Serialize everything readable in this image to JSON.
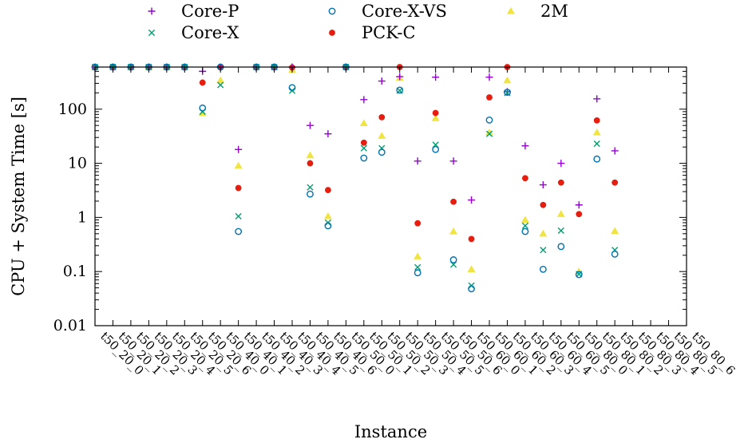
{
  "chart_data": {
    "type": "scatter",
    "xlabel": "Instance",
    "ylabel": "CPU + System Time [s]",
    "yscale": "log",
    "ylim": [
      0.01,
      600
    ],
    "yticks": [
      {
        "value": 0.01,
        "label": "0.01"
      },
      {
        "value": 0.1,
        "label": "0.1"
      },
      {
        "value": 1,
        "label": "1"
      },
      {
        "value": 10,
        "label": "10"
      },
      {
        "value": 100,
        "label": "100"
      }
    ],
    "grid": false,
    "legend_position": "top",
    "categories": [
      "t50_20_0",
      "t50_20_1",
      "t50_20_2",
      "t50_20_3",
      "t50_20_4",
      "t50_20_5",
      "t50_20_6",
      "t50_40_0",
      "t50_40_1",
      "t50_40_2",
      "t50_40_3",
      "t50_40_4",
      "t50_40_5",
      "t50_40_6",
      "t50_50_0",
      "t50_50_1",
      "t50_50_2",
      "t50_50_3",
      "t50_50_4",
      "t50_50_5",
      "t50_50_6",
      "t50_60_0",
      "t50_60_1",
      "t50_60_2",
      "t50_60_3",
      "t50_60_4",
      "t50_60_5",
      "t50_80_0",
      "t50_80_1",
      "t50_80_2",
      "t50_80_3",
      "t50_80_4",
      "t50_80_5",
      "t50_80_6"
    ],
    "series": [
      {
        "name": "Core-P",
        "marker": "plus",
        "color": "#9400d3",
        "values": [
          600,
          600,
          600,
          600,
          600,
          600,
          500,
          600,
          18,
          600,
          600,
          600,
          50,
          35,
          600,
          150,
          330,
          400,
          11,
          390,
          11,
          2.1,
          390,
          210,
          21,
          4,
          10,
          1.7,
          155,
          17,
          null,
          null,
          null,
          null
        ]
      },
      {
        "name": "Core-X",
        "marker": "cross",
        "color": "#009e73",
        "values": [
          600,
          600,
          600,
          600,
          600,
          600,
          90,
          280,
          1.05,
          600,
          600,
          220,
          3.6,
          0.8,
          600,
          19,
          19,
          220,
          0.12,
          22,
          0.135,
          0.055,
          35,
          200,
          0.7,
          0.25,
          0.57,
          0.09,
          23,
          0.25,
          null,
          null,
          null,
          null
        ]
      },
      {
        "name": "Core-X-VS",
        "marker": "circle",
        "color": "#0072b2",
        "values": [
          600,
          600,
          600,
          600,
          600,
          600,
          105,
          600,
          0.55,
          600,
          600,
          250,
          2.7,
          0.7,
          600,
          12.5,
          16,
          225,
          0.095,
          18,
          0.165,
          0.048,
          63,
          205,
          0.55,
          0.11,
          0.29,
          0.088,
          12,
          0.21,
          null,
          null,
          null,
          null
        ]
      },
      {
        "name": "PCK-C",
        "marker": "dot",
        "color": "#e51e10",
        "values": [
          600,
          600,
          600,
          600,
          600,
          600,
          310,
          600,
          3.5,
          600,
          600,
          590,
          10,
          3.2,
          600,
          24,
          71,
          600,
          0.78,
          85,
          1.95,
          0.4,
          165,
          600,
          5.3,
          1.7,
          4.4,
          1.15,
          62,
          4.4,
          null,
          null,
          null,
          null
        ]
      },
      {
        "name": "2M",
        "marker": "triangle",
        "color": "#f0e442",
        "values": [
          600,
          600,
          600,
          600,
          600,
          600,
          85,
          340,
          9,
          600,
          600,
          530,
          14,
          1.05,
          600,
          55,
          32,
          380,
          0.19,
          68,
          0.55,
          0.11,
          37,
          340,
          0.9,
          0.5,
          1.15,
          0.1,
          37,
          0.56,
          null,
          null,
          null,
          null
        ]
      }
    ]
  }
}
